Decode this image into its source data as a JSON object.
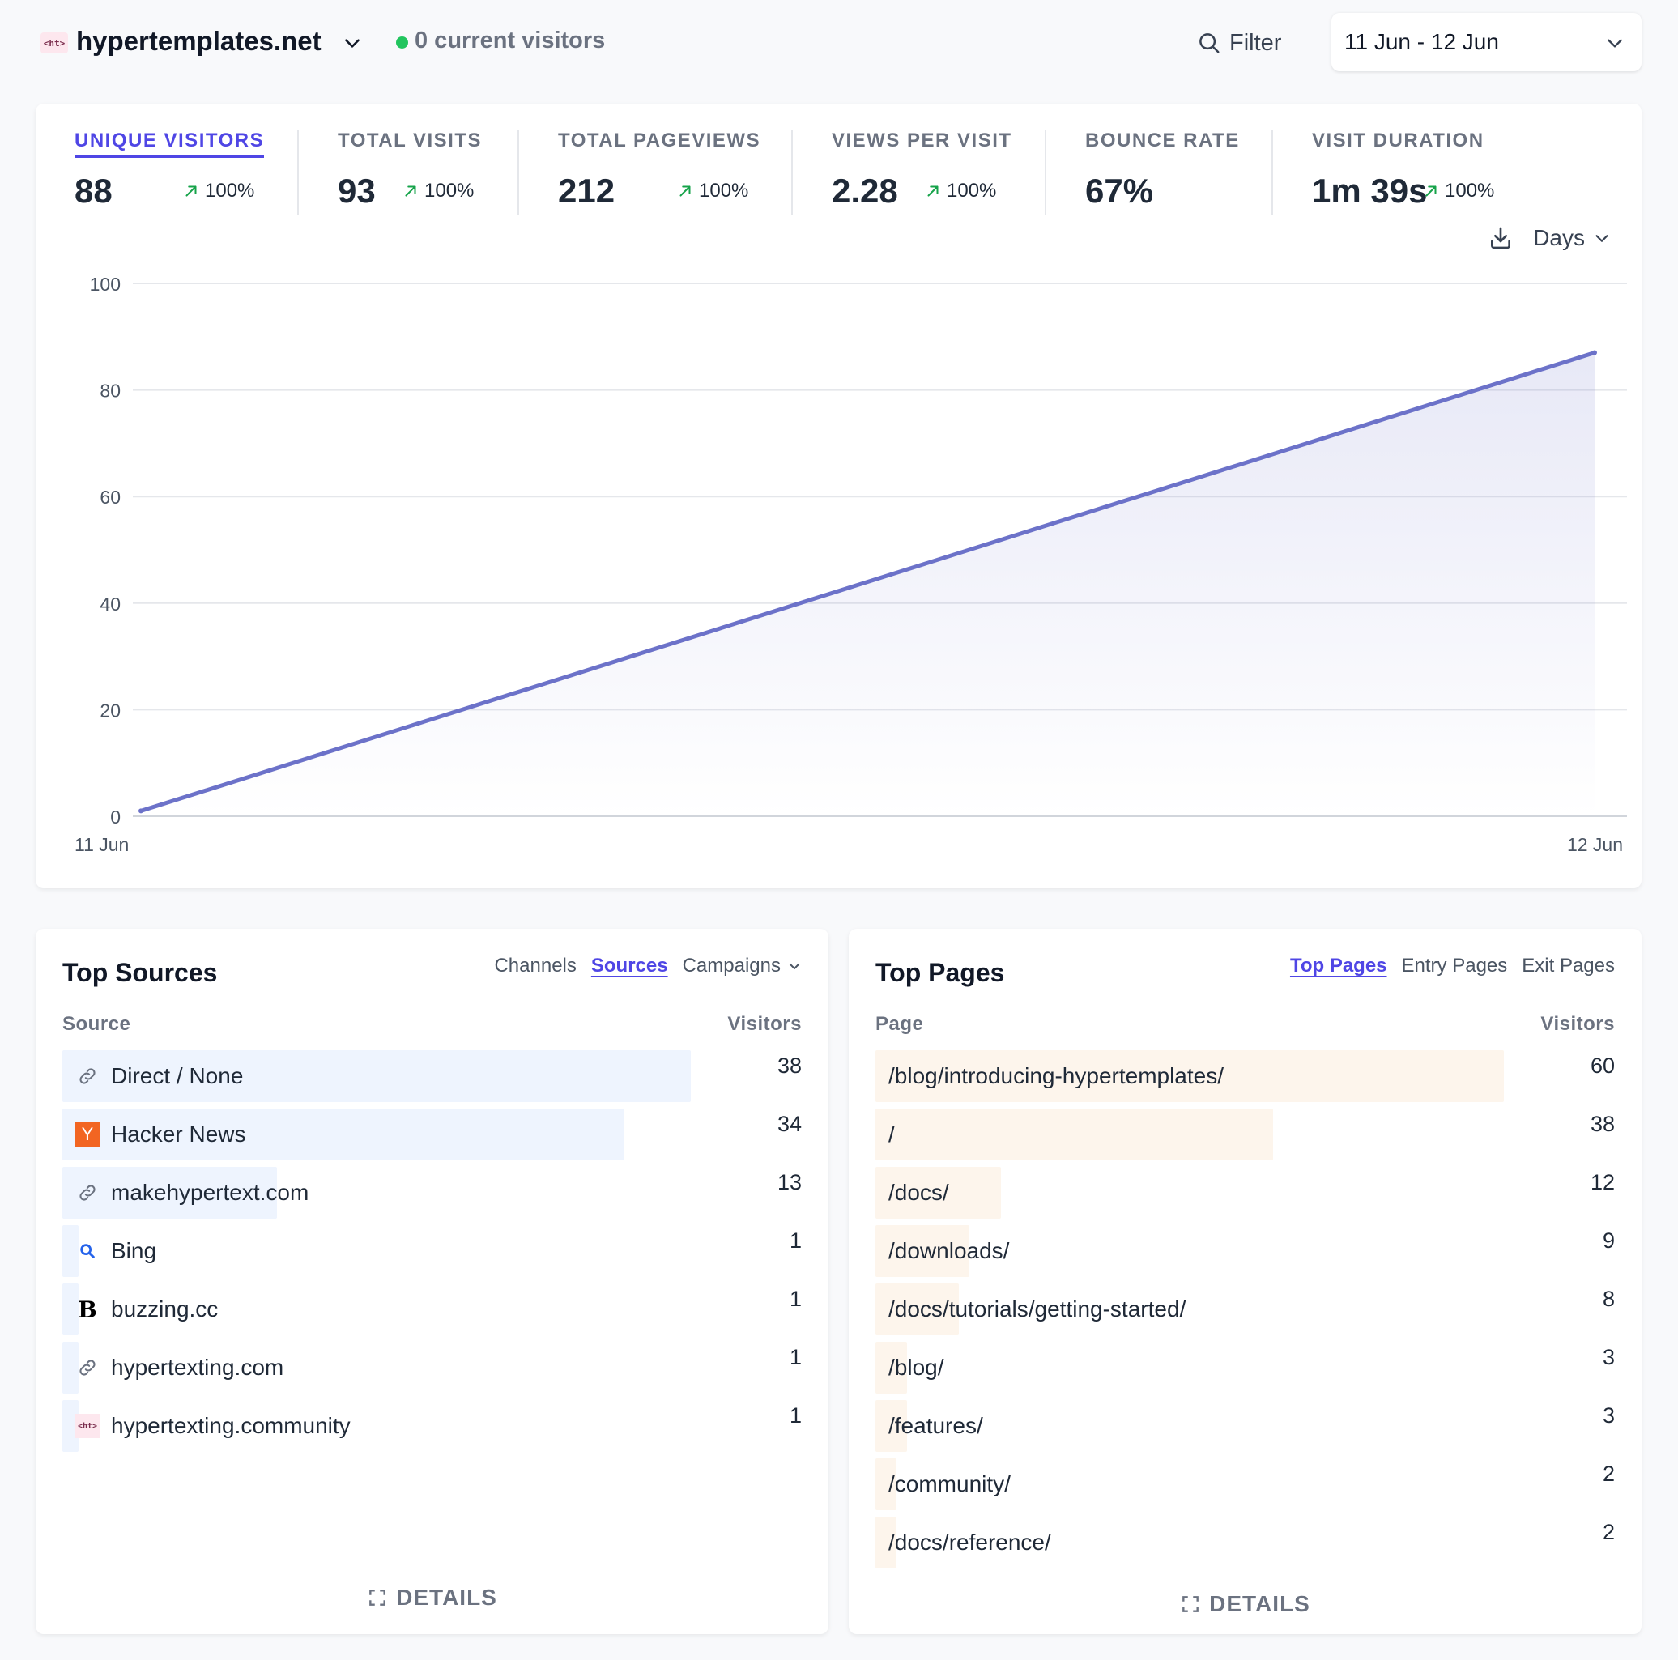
{
  "header": {
    "logo_text": "<ht>",
    "site_name": "hypertemplates.net",
    "live_visitors": "0 current visitors",
    "filter_label": "Filter",
    "date_range": "11 Jun - 12 Jun"
  },
  "colors": {
    "accent": "#4f46e5",
    "line": "#6c72c9",
    "source_bar": "#eef4fe",
    "page_bar": "#fdf5ec",
    "live": "#22c55e",
    "trend_up": "#16a34a"
  },
  "metrics": [
    {
      "label": "UNIQUE VISITORS",
      "value": "88",
      "change": "100%",
      "active": true
    },
    {
      "label": "TOTAL VISITS",
      "value": "93",
      "change": "100%"
    },
    {
      "label": "TOTAL PAGEVIEWS",
      "value": "212",
      "change": "100%"
    },
    {
      "label": "VIEWS PER VISIT",
      "value": "2.28",
      "change": "100%"
    },
    {
      "label": "BOUNCE RATE",
      "value": "67%",
      "change": ""
    },
    {
      "label": "VISIT DURATION",
      "value": "1m 39s",
      "change": "100%"
    }
  ],
  "chart_controls": {
    "interval": "Days",
    "download_icon": "download-icon"
  },
  "chart_data": {
    "type": "area",
    "x": [
      "11 Jun",
      "12 Jun"
    ],
    "series": [
      {
        "values": [
          1,
          87
        ]
      }
    ],
    "yticks": [
      0,
      20,
      40,
      60,
      80,
      100
    ],
    "ylim": [
      0,
      100
    ],
    "grid": true
  },
  "sources": {
    "title": "Top Sources",
    "tabs": [
      "Channels",
      "Sources",
      "Campaigns"
    ],
    "active_tab": "Sources",
    "col_label": "Source",
    "col_value": "Visitors",
    "max": 38,
    "rows": [
      {
        "label": "Direct / None",
        "value": 38,
        "icon": "link-icon"
      },
      {
        "label": "Hacker News",
        "value": 34,
        "icon": "hacker-news-icon"
      },
      {
        "label": "makehypertext.com",
        "value": 13,
        "icon": "link-icon"
      },
      {
        "label": "Bing",
        "value": 1,
        "icon": "bing-search-icon"
      },
      {
        "label": "buzzing.cc",
        "value": 1,
        "icon": "buzzing-icon"
      },
      {
        "label": "hypertexting.com",
        "value": 1,
        "icon": "link-icon"
      },
      {
        "label": "hypertexting.community",
        "value": 1,
        "icon": "ht-logo-icon"
      }
    ],
    "details_label": "DETAILS"
  },
  "pages": {
    "title": "Top Pages",
    "tabs": [
      "Top Pages",
      "Entry Pages",
      "Exit Pages"
    ],
    "active_tab": "Top Pages",
    "col_label": "Page",
    "col_value": "Visitors",
    "max": 60,
    "rows": [
      {
        "label": "/blog/introducing-hypertemplates/",
        "value": 60
      },
      {
        "label": "/",
        "value": 38
      },
      {
        "label": "/docs/",
        "value": 12
      },
      {
        "label": "/downloads/",
        "value": 9
      },
      {
        "label": "/docs/tutorials/getting-started/",
        "value": 8
      },
      {
        "label": "/blog/",
        "value": 3
      },
      {
        "label": "/features/",
        "value": 3
      },
      {
        "label": "/community/",
        "value": 2
      },
      {
        "label": "/docs/reference/",
        "value": 2
      }
    ],
    "details_label": "DETAILS"
  }
}
